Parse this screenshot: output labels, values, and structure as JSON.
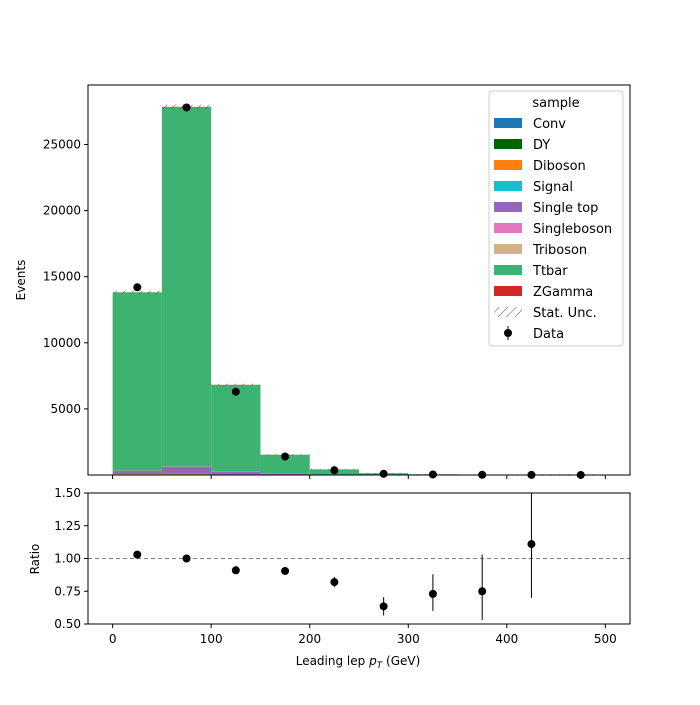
{
  "chart_data": {
    "type": "bar",
    "stacked": true,
    "bin_edges": [
      0,
      50,
      100,
      150,
      200,
      250,
      300,
      350,
      400,
      450,
      500
    ],
    "bin_centers": [
      25,
      75,
      125,
      175,
      225,
      275,
      325,
      375,
      425,
      475
    ],
    "main": {
      "ylabel": "Events",
      "xlim": [
        -25,
        525
      ],
      "ylim": [
        0,
        29500
      ],
      "yticks": [
        5000,
        10000,
        15000,
        20000,
        25000
      ],
      "ytick_labels": [
        "5000",
        "10000",
        "15000",
        "20000",
        "25000"
      ],
      "series": [
        {
          "name": "Conv",
          "color": "#1f77b4",
          "values": [
            10,
            15,
            5,
            2,
            1,
            0,
            0,
            0,
            0,
            0
          ]
        },
        {
          "name": "DY",
          "color": "#006400",
          "values": [
            30,
            40,
            20,
            8,
            4,
            2,
            1,
            1,
            0,
            0
          ]
        },
        {
          "name": "Diboson",
          "color": "#ff7f0e",
          "values": [
            15,
            20,
            10,
            5,
            2,
            1,
            1,
            0,
            0,
            0
          ]
        },
        {
          "name": "Signal",
          "color": "#17becf",
          "values": [
            5,
            8,
            4,
            2,
            1,
            0,
            0,
            0,
            0,
            0
          ]
        },
        {
          "name": "Single top",
          "color": "#9467bd",
          "values": [
            250,
            520,
            210,
            70,
            28,
            12,
            5,
            2,
            1,
            0
          ]
        },
        {
          "name": "Singleboson",
          "color": "#e377c2",
          "values": [
            20,
            30,
            12,
            5,
            2,
            1,
            0,
            0,
            0,
            0
          ]
        },
        {
          "name": "Triboson",
          "color": "#d2b48c",
          "values": [
            2,
            3,
            2,
            1,
            0,
            0,
            0,
            0,
            0,
            0
          ]
        },
        {
          "name": "Ttbar",
          "color": "#3cb371",
          "values": [
            13480,
            27200,
            6557,
            1440,
            387,
            121,
            46,
            20,
            8,
            3
          ]
        },
        {
          "name": "ZGamma",
          "color": "#d62728",
          "values": [
            8,
            12,
            8,
            3,
            1,
            0,
            0,
            0,
            0,
            0
          ]
        }
      ],
      "data_points": [
        14200,
        27800,
        6300,
        1400,
        360,
        90,
        40,
        17,
        10,
        2
      ]
    },
    "ratio": {
      "ylabel": "Ratio",
      "ylim": [
        0.5,
        1.5
      ],
      "yticks": [
        0.5,
        0.75,
        1.0,
        1.25,
        1.5
      ],
      "ytick_labels": [
        "0.50",
        "0.75",
        "1.00",
        "1.25",
        "1.50"
      ],
      "reference_line": 1.0,
      "x": [
        25,
        75,
        125,
        175,
        225,
        275,
        325,
        375,
        425
      ],
      "values": [
        1.03,
        1.0,
        0.91,
        0.905,
        0.82,
        0.635,
        0.73,
        0.75,
        1.11
      ],
      "err_low": [
        0.01,
        0.005,
        0.01,
        0.02,
        0.04,
        0.07,
        0.13,
        0.22,
        0.41
      ],
      "err_high": [
        0.01,
        0.005,
        0.01,
        0.02,
        0.04,
        0.07,
        0.15,
        0.28,
        0.48
      ]
    },
    "xlabel_prefix": "Leading lep ",
    "xlabel_var": "p",
    "xlabel_sub": "T",
    "xlabel_unit": " (GeV)",
    "xticks": [
      0,
      100,
      200,
      300,
      400,
      500
    ],
    "xtick_labels": [
      "0",
      "100",
      "200",
      "300",
      "400",
      "500"
    ],
    "legend": {
      "title": "sample",
      "position": "top-right",
      "stat_unc_label": "Stat. Unc.",
      "data_label": "Data"
    }
  }
}
